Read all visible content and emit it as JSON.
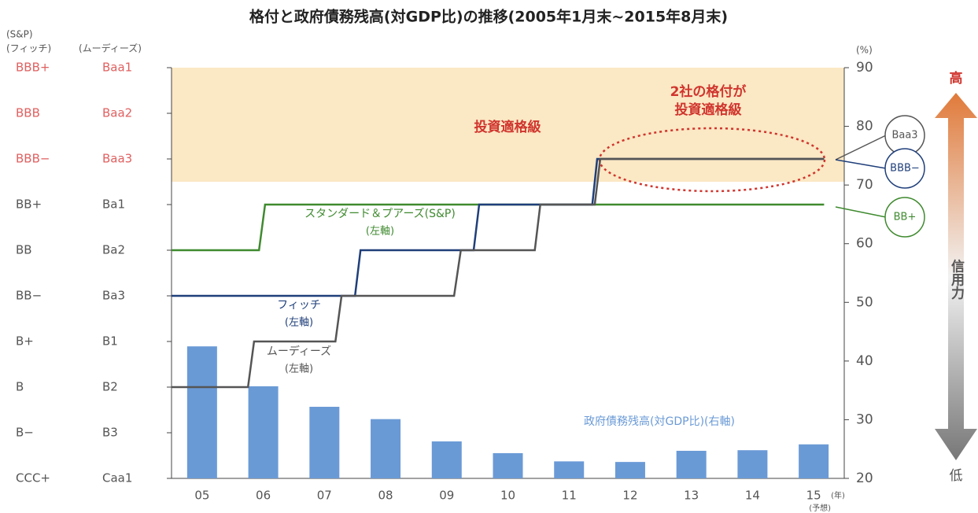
{
  "chart_data": {
    "type": "combo",
    "title": "格付と政府債務残高(対GDP比)の推移(2005年1月末~2015年8月末)",
    "left_headers": [
      "(S&P)",
      "(フィッチ)",
      "(ムーディーズ)"
    ],
    "y2_unit": "(%)",
    "x_unit": "(年)",
    "x_note": "(予想)",
    "categories": [
      "05",
      "06",
      "07",
      "08",
      "09",
      "10",
      "11",
      "12",
      "13",
      "14",
      "15"
    ],
    "xlim": [
      2005,
      2016
    ],
    "ylim": [
      0,
      9
    ],
    "yticks": [
      {
        "value": 0,
        "label": "CCC+"
      },
      {
        "value": 1,
        "label": "B−"
      },
      {
        "value": 2,
        "label": "B"
      },
      {
        "value": 3,
        "label": "B+"
      },
      {
        "value": 4,
        "label": "BB−"
      },
      {
        "value": 5,
        "label": "BB"
      },
      {
        "value": 6,
        "label": "BB+"
      },
      {
        "value": 7,
        "label": "BBB−"
      },
      {
        "value": 8,
        "label": "BBB"
      },
      {
        "value": 9,
        "label": "BBB+"
      }
    ],
    "yticks_moodys": [
      {
        "value": 0,
        "label": "Caa1"
      },
      {
        "value": 1,
        "label": "B3"
      },
      {
        "value": 2,
        "label": "B2"
      },
      {
        "value": 3,
        "label": "B1"
      },
      {
        "value": 4,
        "label": "Ba3"
      },
      {
        "value": 5,
        "label": "Ba2"
      },
      {
        "value": 6,
        "label": "Ba1"
      },
      {
        "value": 7,
        "label": "Baa3"
      },
      {
        "value": 8,
        "label": "Baa2"
      },
      {
        "value": 9,
        "label": "Baa1"
      }
    ],
    "y2lim": [
      20,
      90
    ],
    "y2ticks": [
      20,
      30,
      40,
      50,
      60,
      70,
      80,
      90
    ],
    "band": [
      6.5,
      9
    ],
    "band_label": "投資適格級",
    "highlight_label": [
      "2社の格付が",
      "投資適格級"
    ],
    "series": [
      {
        "type": "bar",
        "name": "政府債務残高(対GDP比)(右軸)",
        "color": "#6a9ad6",
        "axis": "y2",
        "values": [
          42.5,
          35.7,
          32.2,
          30.1,
          26.3,
          24.3,
          22.9,
          22.8,
          24.7,
          24.8,
          25.8
        ]
      },
      {
        "type": "line",
        "name": "スタンダード＆プアーズ(S&P)",
        "axis_note": "(左軸)",
        "color": "#3f8a2f",
        "x": [
          2005,
          2006.43,
          2006.53,
          2015.67
        ],
        "values": [
          5,
          5,
          6,
          6
        ]
      },
      {
        "type": "line",
        "name": "フィッチ",
        "axis_note": "(左軸)",
        "color": "#1f3f7a",
        "x": [
          2005,
          2008.0,
          2008.09,
          2009.94,
          2010.03,
          2011.88,
          2011.96,
          2015.67
        ],
        "values": [
          4,
          4,
          5,
          5,
          6,
          6,
          7,
          7
        ]
      },
      {
        "type": "line",
        "name": "ムーディーズ",
        "axis_note": "(左軸)",
        "color": "#555555",
        "x": [
          2005,
          2006.25,
          2006.35,
          2007.68,
          2007.78,
          2009.62,
          2009.73,
          2010.94,
          2011.03,
          2011.92,
          2012.01,
          2015.67
        ],
        "values": [
          2,
          2,
          3,
          3,
          4,
          4,
          5,
          5,
          6,
          6,
          7,
          7
        ]
      }
    ],
    "callouts": [
      "Baa3",
      "BBB−",
      "BB+"
    ],
    "arrow_top": "高",
    "arrow_bottom": "低",
    "arrow_label": "信用力"
  }
}
